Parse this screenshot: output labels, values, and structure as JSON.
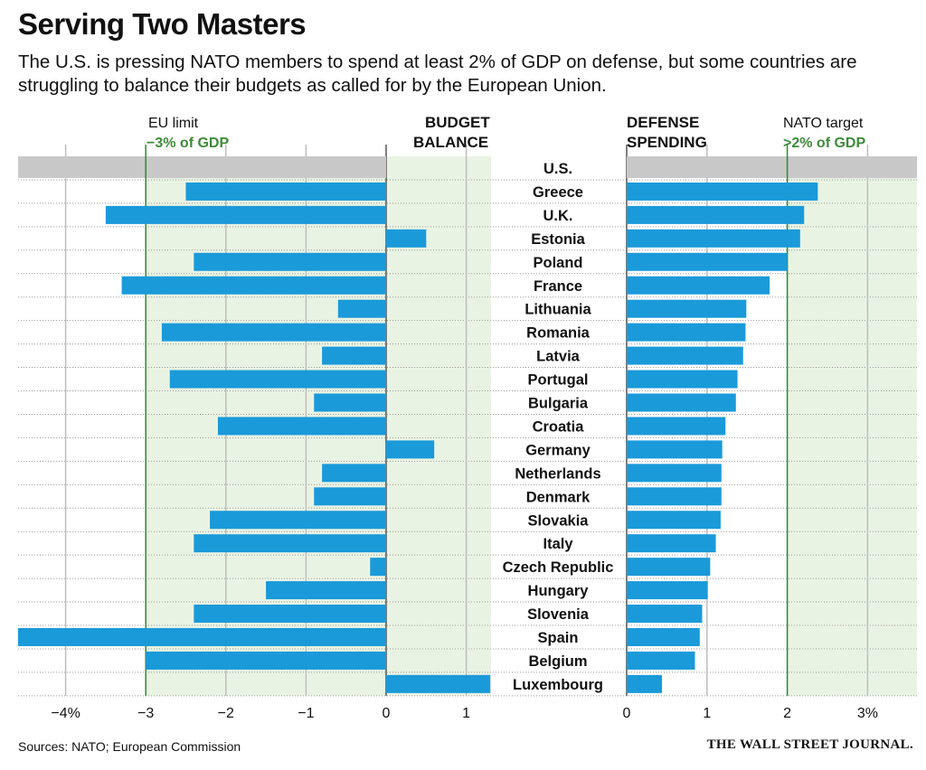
{
  "title": "Serving Two Masters",
  "subtitle": "The U.S. is pressing NATO members to spend at least 2% of GDP on defense, but some countries are struggling to balance their budgets as called for by the European Union.",
  "source": "Sources: NATO; European Commission",
  "publisher": "THE WALL STREET JOURNAL.",
  "colors": {
    "bar": "#1a9ad9",
    "shade": "#e9f3e3",
    "limit_line": "#2d8a2f",
    "grid": "#bdbdbd",
    "us_row": "#c8c8c8",
    "limit_text": "#3f8b3a"
  },
  "chart_data": [
    {
      "type": "bar",
      "orientation": "horizontal",
      "title": "BUDGET BALANCE",
      "title_lines": [
        "BUDGET",
        "BALANCE"
      ],
      "xlim": [
        -4.6,
        1.3
      ],
      "ticks": [
        -4,
        -3,
        -2,
        -1,
        0,
        1
      ],
      "tick_labels": [
        "−4%",
        "−3",
        "−2",
        "−1",
        "0",
        "1"
      ],
      "reference_line": {
        "value": -3,
        "label_lines": [
          "EU limit",
          "−3% of GDP"
        ]
      },
      "categories": [
        "U.S.",
        "Greece",
        "U.K.",
        "Estonia",
        "Poland",
        "France",
        "Lithuania",
        "Romania",
        "Latvia",
        "Portugal",
        "Bulgaria",
        "Croatia",
        "Germany",
        "Netherlands",
        "Denmark",
        "Slovakia",
        "Italy",
        "Czech Republic",
        "Hungary",
        "Slovenia",
        "Spain",
        "Belgium",
        "Luxembourg"
      ],
      "values": [
        null,
        -2.5,
        -3.5,
        0.5,
        -2.4,
        -3.3,
        -0.6,
        -2.8,
        -0.8,
        -2.7,
        -0.9,
        -2.1,
        0.6,
        -0.8,
        -0.9,
        -2.2,
        -2.4,
        -0.2,
        -1.5,
        -2.4,
        -4.6,
        -3.0,
        1.3
      ]
    },
    {
      "type": "bar",
      "orientation": "horizontal",
      "title": "DEFENSE SPENDING",
      "title_lines": [
        "DEFENSE",
        "SPENDING"
      ],
      "xlim": [
        0,
        3.6
      ],
      "ticks": [
        0,
        1,
        2,
        3
      ],
      "tick_labels": [
        "0",
        "1",
        "2",
        "3%"
      ],
      "reference_line": {
        "value": 2,
        "label_lines": [
          "NATO target",
          ">2% of GDP"
        ]
      },
      "categories": [
        "U.S.",
        "Greece",
        "U.K.",
        "Estonia",
        "Poland",
        "France",
        "Lithuania",
        "Romania",
        "Latvia",
        "Portugal",
        "Bulgaria",
        "Croatia",
        "Germany",
        "Netherlands",
        "Denmark",
        "Slovakia",
        "Italy",
        "Czech Republic",
        "Hungary",
        "Slovenia",
        "Spain",
        "Belgium",
        "Luxembourg"
      ],
      "values": [
        3.6,
        2.38,
        2.21,
        2.16,
        2.0,
        1.78,
        1.49,
        1.48,
        1.45,
        1.38,
        1.36,
        1.23,
        1.19,
        1.18,
        1.18,
        1.17,
        1.11,
        1.04,
        1.01,
        0.94,
        0.91,
        0.85,
        0.44
      ]
    }
  ]
}
